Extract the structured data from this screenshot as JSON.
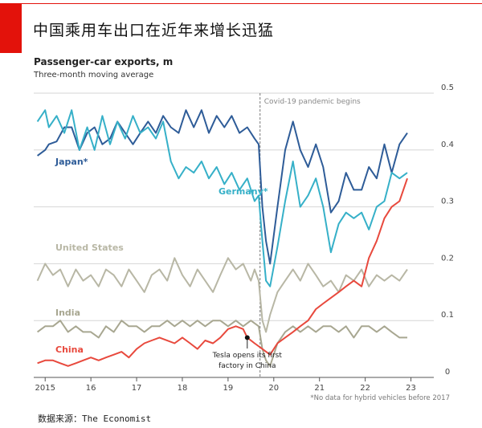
{
  "page": {
    "title": "中国乘用车出口在近年来增长迅猛",
    "source": "数据来源：The Economist"
  },
  "chart_data": {
    "type": "line",
    "title": "Passenger-car exports, m",
    "subtitle": "Three-month moving average",
    "ylim": [
      0,
      0.5
    ],
    "xlim": [
      2014.75,
      2023.5
    ],
    "yticks": [
      0,
      0.1,
      0.2,
      0.3,
      0.4,
      0.5
    ],
    "ytick_labels": [
      "0",
      "0.1",
      "0.2",
      "0.3",
      "0.4",
      "0.5"
    ],
    "xticks": [
      2015,
      2016,
      2017,
      2018,
      2019,
      2020,
      2021,
      2022,
      2023
    ],
    "xtick_labels": [
      "2015",
      "16",
      "17",
      "18",
      "19",
      "20",
      "21",
      "22",
      "23"
    ],
    "grid": true,
    "y_axis_side": "right",
    "annotations": [
      {
        "id": "covid",
        "text": "Covid-19 pandemic begins",
        "x": 2019.7
      },
      {
        "id": "tesla",
        "text_line1": "Tesla opens its first",
        "text_line2": "factory in China",
        "x": 2019.42,
        "y": 0.07
      }
    ],
    "footnote": "*No data for hybrid vehicles before 2017",
    "series": [
      {
        "name": "Japan*",
        "color": "#2e5c98",
        "points": [
          [
            2014.83,
            0.39
          ],
          [
            2015.0,
            0.4
          ],
          [
            2015.08,
            0.41
          ],
          [
            2015.25,
            0.415
          ],
          [
            2015.42,
            0.44
          ],
          [
            2015.58,
            0.44
          ],
          [
            2015.75,
            0.4
          ],
          [
            2015.92,
            0.43
          ],
          [
            2016.08,
            0.44
          ],
          [
            2016.25,
            0.41
          ],
          [
            2016.42,
            0.42
          ],
          [
            2016.58,
            0.45
          ],
          [
            2016.75,
            0.43
          ],
          [
            2016.92,
            0.41
          ],
          [
            2017.08,
            0.43
          ],
          [
            2017.25,
            0.45
          ],
          [
            2017.42,
            0.43
          ],
          [
            2017.58,
            0.46
          ],
          [
            2017.75,
            0.44
          ],
          [
            2017.92,
            0.43
          ],
          [
            2018.08,
            0.47
          ],
          [
            2018.25,
            0.44
          ],
          [
            2018.42,
            0.47
          ],
          [
            2018.58,
            0.43
          ],
          [
            2018.75,
            0.46
          ],
          [
            2018.92,
            0.44
          ],
          [
            2019.08,
            0.46
          ],
          [
            2019.25,
            0.43
          ],
          [
            2019.42,
            0.44
          ],
          [
            2019.58,
            0.42
          ],
          [
            2019.67,
            0.41
          ],
          [
            2019.75,
            0.3
          ],
          [
            2019.83,
            0.24
          ],
          [
            2019.92,
            0.2
          ],
          [
            2020.08,
            0.3
          ],
          [
            2020.25,
            0.4
          ],
          [
            2020.42,
            0.45
          ],
          [
            2020.58,
            0.4
          ],
          [
            2020.75,
            0.37
          ],
          [
            2020.92,
            0.41
          ],
          [
            2021.08,
            0.37
          ],
          [
            2021.25,
            0.29
          ],
          [
            2021.42,
            0.31
          ],
          [
            2021.58,
            0.36
          ],
          [
            2021.75,
            0.33
          ],
          [
            2021.92,
            0.33
          ],
          [
            2022.08,
            0.37
          ],
          [
            2022.25,
            0.35
          ],
          [
            2022.42,
            0.41
          ],
          [
            2022.58,
            0.36
          ],
          [
            2022.75,
            0.41
          ],
          [
            2022.92,
            0.43
          ]
        ]
      },
      {
        "name": "Germany*",
        "color": "#36b0c8",
        "points": [
          [
            2014.83,
            0.45
          ],
          [
            2015.0,
            0.47
          ],
          [
            2015.08,
            0.44
          ],
          [
            2015.25,
            0.46
          ],
          [
            2015.42,
            0.43
          ],
          [
            2015.58,
            0.47
          ],
          [
            2015.75,
            0.4
          ],
          [
            2015.92,
            0.44
          ],
          [
            2016.08,
            0.4
          ],
          [
            2016.25,
            0.46
          ],
          [
            2016.42,
            0.41
          ],
          [
            2016.58,
            0.45
          ],
          [
            2016.75,
            0.42
          ],
          [
            2016.92,
            0.46
          ],
          [
            2017.08,
            0.43
          ],
          [
            2017.25,
            0.44
          ],
          [
            2017.42,
            0.42
          ],
          [
            2017.58,
            0.45
          ],
          [
            2017.75,
            0.38
          ],
          [
            2017.92,
            0.35
          ],
          [
            2018.08,
            0.37
          ],
          [
            2018.25,
            0.36
          ],
          [
            2018.42,
            0.38
          ],
          [
            2018.58,
            0.35
          ],
          [
            2018.75,
            0.37
          ],
          [
            2018.92,
            0.34
          ],
          [
            2019.08,
            0.36
          ],
          [
            2019.25,
            0.33
          ],
          [
            2019.42,
            0.35
          ],
          [
            2019.58,
            0.31
          ],
          [
            2019.67,
            0.32
          ],
          [
            2019.75,
            0.24
          ],
          [
            2019.83,
            0.17
          ],
          [
            2019.92,
            0.16
          ],
          [
            2020.08,
            0.23
          ],
          [
            2020.25,
            0.31
          ],
          [
            2020.42,
            0.38
          ],
          [
            2020.58,
            0.3
          ],
          [
            2020.75,
            0.32
          ],
          [
            2020.92,
            0.35
          ],
          [
            2021.08,
            0.3
          ],
          [
            2021.25,
            0.22
          ],
          [
            2021.42,
            0.27
          ],
          [
            2021.58,
            0.29
          ],
          [
            2021.75,
            0.28
          ],
          [
            2021.92,
            0.29
          ],
          [
            2022.08,
            0.26
          ],
          [
            2022.25,
            0.3
          ],
          [
            2022.42,
            0.31
          ],
          [
            2022.58,
            0.36
          ],
          [
            2022.75,
            0.35
          ],
          [
            2022.92,
            0.36
          ]
        ]
      },
      {
        "name": "United States",
        "color": "#b8b7a5",
        "points": [
          [
            2014.83,
            0.17
          ],
          [
            2015.0,
            0.2
          ],
          [
            2015.17,
            0.18
          ],
          [
            2015.33,
            0.19
          ],
          [
            2015.5,
            0.16
          ],
          [
            2015.67,
            0.19
          ],
          [
            2015.83,
            0.17
          ],
          [
            2016.0,
            0.18
          ],
          [
            2016.17,
            0.16
          ],
          [
            2016.33,
            0.19
          ],
          [
            2016.5,
            0.18
          ],
          [
            2016.67,
            0.16
          ],
          [
            2016.83,
            0.19
          ],
          [
            2017.0,
            0.17
          ],
          [
            2017.17,
            0.15
          ],
          [
            2017.33,
            0.18
          ],
          [
            2017.5,
            0.19
          ],
          [
            2017.67,
            0.17
          ],
          [
            2017.83,
            0.21
          ],
          [
            2018.0,
            0.18
          ],
          [
            2018.17,
            0.16
          ],
          [
            2018.33,
            0.19
          ],
          [
            2018.5,
            0.17
          ],
          [
            2018.67,
            0.15
          ],
          [
            2018.83,
            0.18
          ],
          [
            2019.0,
            0.21
          ],
          [
            2019.17,
            0.19
          ],
          [
            2019.33,
            0.2
          ],
          [
            2019.5,
            0.17
          ],
          [
            2019.58,
            0.19
          ],
          [
            2019.67,
            0.17
          ],
          [
            2019.75,
            0.1
          ],
          [
            2019.83,
            0.08
          ],
          [
            2019.92,
            0.11
          ],
          [
            2020.08,
            0.15
          ],
          [
            2020.25,
            0.17
          ],
          [
            2020.42,
            0.19
          ],
          [
            2020.58,
            0.17
          ],
          [
            2020.75,
            0.2
          ],
          [
            2020.92,
            0.18
          ],
          [
            2021.08,
            0.16
          ],
          [
            2021.25,
            0.17
          ],
          [
            2021.42,
            0.15
          ],
          [
            2021.58,
            0.18
          ],
          [
            2021.75,
            0.17
          ],
          [
            2021.92,
            0.19
          ],
          [
            2022.08,
            0.16
          ],
          [
            2022.25,
            0.18
          ],
          [
            2022.42,
            0.17
          ],
          [
            2022.58,
            0.18
          ],
          [
            2022.75,
            0.17
          ],
          [
            2022.92,
            0.19
          ]
        ]
      },
      {
        "name": "India",
        "color": "#a8a791",
        "points": [
          [
            2014.83,
            0.08
          ],
          [
            2015.0,
            0.09
          ],
          [
            2015.17,
            0.09
          ],
          [
            2015.33,
            0.1
          ],
          [
            2015.5,
            0.08
          ],
          [
            2015.67,
            0.09
          ],
          [
            2015.83,
            0.08
          ],
          [
            2016.0,
            0.08
          ],
          [
            2016.17,
            0.07
          ],
          [
            2016.33,
            0.09
          ],
          [
            2016.5,
            0.08
          ],
          [
            2016.67,
            0.1
          ],
          [
            2016.83,
            0.09
          ],
          [
            2017.0,
            0.09
          ],
          [
            2017.17,
            0.08
          ],
          [
            2017.33,
            0.09
          ],
          [
            2017.5,
            0.09
          ],
          [
            2017.67,
            0.1
          ],
          [
            2017.83,
            0.09
          ],
          [
            2018.0,
            0.1
          ],
          [
            2018.17,
            0.09
          ],
          [
            2018.33,
            0.1
          ],
          [
            2018.5,
            0.09
          ],
          [
            2018.67,
            0.1
          ],
          [
            2018.83,
            0.1
          ],
          [
            2019.0,
            0.09
          ],
          [
            2019.17,
            0.1
          ],
          [
            2019.33,
            0.09
          ],
          [
            2019.5,
            0.1
          ],
          [
            2019.67,
            0.09
          ],
          [
            2019.75,
            0.05
          ],
          [
            2019.83,
            0.03
          ],
          [
            2019.92,
            0.02
          ],
          [
            2020.08,
            0.06
          ],
          [
            2020.25,
            0.08
          ],
          [
            2020.42,
            0.09
          ],
          [
            2020.58,
            0.08
          ],
          [
            2020.75,
            0.09
          ],
          [
            2020.92,
            0.08
          ],
          [
            2021.08,
            0.09
          ],
          [
            2021.25,
            0.09
          ],
          [
            2021.42,
            0.08
          ],
          [
            2021.58,
            0.09
          ],
          [
            2021.75,
            0.07
          ],
          [
            2021.92,
            0.09
          ],
          [
            2022.08,
            0.09
          ],
          [
            2022.25,
            0.08
          ],
          [
            2022.42,
            0.09
          ],
          [
            2022.58,
            0.08
          ],
          [
            2022.75,
            0.07
          ],
          [
            2022.92,
            0.07
          ]
        ]
      },
      {
        "name": "China",
        "color": "#e8493d",
        "points": [
          [
            2014.83,
            0.025
          ],
          [
            2015.0,
            0.03
          ],
          [
            2015.17,
            0.03
          ],
          [
            2015.33,
            0.025
          ],
          [
            2015.5,
            0.02
          ],
          [
            2015.67,
            0.025
          ],
          [
            2015.83,
            0.03
          ],
          [
            2016.0,
            0.035
          ],
          [
            2016.17,
            0.03
          ],
          [
            2016.33,
            0.035
          ],
          [
            2016.5,
            0.04
          ],
          [
            2016.67,
            0.045
          ],
          [
            2016.83,
            0.035
          ],
          [
            2017.0,
            0.05
          ],
          [
            2017.17,
            0.06
          ],
          [
            2017.33,
            0.065
          ],
          [
            2017.5,
            0.07
          ],
          [
            2017.67,
            0.065
          ],
          [
            2017.83,
            0.06
          ],
          [
            2018.0,
            0.07
          ],
          [
            2018.17,
            0.06
          ],
          [
            2018.33,
            0.05
          ],
          [
            2018.5,
            0.065
          ],
          [
            2018.67,
            0.06
          ],
          [
            2018.83,
            0.07
          ],
          [
            2019.0,
            0.085
          ],
          [
            2019.17,
            0.09
          ],
          [
            2019.33,
            0.085
          ],
          [
            2019.42,
            0.07
          ],
          [
            2019.58,
            0.06
          ],
          [
            2019.75,
            0.05
          ],
          [
            2019.92,
            0.04
          ],
          [
            2020.08,
            0.06
          ],
          [
            2020.25,
            0.07
          ],
          [
            2020.42,
            0.08
          ],
          [
            2020.58,
            0.09
          ],
          [
            2020.75,
            0.1
          ],
          [
            2020.92,
            0.12
          ],
          [
            2021.08,
            0.13
          ],
          [
            2021.25,
            0.14
          ],
          [
            2021.42,
            0.15
          ],
          [
            2021.58,
            0.16
          ],
          [
            2021.75,
            0.17
          ],
          [
            2021.92,
            0.16
          ],
          [
            2022.08,
            0.21
          ],
          [
            2022.25,
            0.24
          ],
          [
            2022.42,
            0.28
          ],
          [
            2022.58,
            0.3
          ],
          [
            2022.75,
            0.31
          ],
          [
            2022.92,
            0.35
          ]
        ]
      }
    ]
  }
}
